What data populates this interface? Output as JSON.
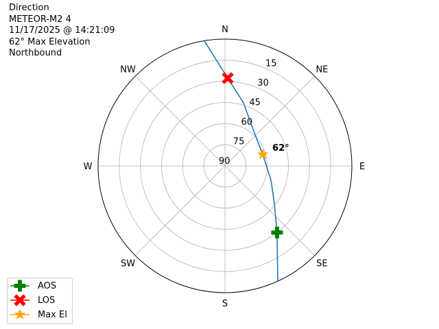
{
  "title_lines": [
    "Direction",
    "METEOR-M2 4",
    "11/17/2025 @ 14:21:09",
    "62° Max Elevation",
    "Northbound"
  ],
  "chart_data": {
    "type": "polar",
    "direction_labels": [
      {
        "label": "N",
        "az": 0
      },
      {
        "label": "NE",
        "az": 45
      },
      {
        "label": "E",
        "az": 90
      },
      {
        "label": "SE",
        "az": 135
      },
      {
        "label": "S",
        "az": 180
      },
      {
        "label": "SW",
        "az": 225
      },
      {
        "label": "W",
        "az": 270
      },
      {
        "label": "NW",
        "az": 315
      }
    ],
    "elevation_ticks": [
      90,
      75,
      60,
      45,
      30,
      15
    ],
    "r_axis": "elevation (90 at center, 0 at edge)",
    "grid": true,
    "track": {
      "color": "#1f77b4",
      "points": [
        {
          "az": 155.4,
          "el": 0
        },
        {
          "az": 142,
          "el": 30
        },
        {
          "az": 127.4,
          "el": 45.9
        },
        {
          "az": 107.4,
          "el": 55.8
        },
        {
          "az": 73,
          "el": 62
        },
        {
          "az": 47,
          "el": 60
        },
        {
          "az": 16.4,
          "el": 43.4
        },
        {
          "az": 1.8,
          "el": 27.7
        },
        {
          "az": 350.6,
          "el": 0
        }
      ]
    },
    "markers": [
      {
        "name": "AOS",
        "az": 142,
        "el": 30,
        "color": "#008000",
        "symbol": "plus"
      },
      {
        "name": "LOS",
        "az": 1.8,
        "el": 27.7,
        "color": "#ff0000",
        "symbol": "x"
      },
      {
        "name": "Max El",
        "az": 73,
        "el": 62,
        "color": "#ffa500",
        "symbol": "star"
      }
    ],
    "annotation": "62°",
    "legend_position": "lower-left"
  }
}
